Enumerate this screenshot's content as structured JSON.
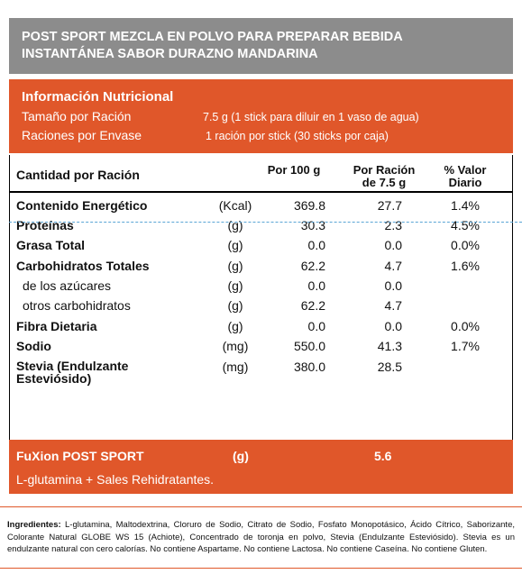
{
  "header": {
    "title_lines": [
      "POST SPORT MEZCLA EN POLVO PARA PREPARAR BEBIDA",
      "INSTANTÁNEA  SABOR DURAZNO MANDARINA"
    ]
  },
  "info": {
    "title": "Información Nutricional",
    "rows": [
      [
        "Tamaño por Ración",
        "7.5 g (1 stick para diluir en 1 vaso de  agua)"
      ],
      [
        "Raciones por Envase",
        "1 ración por stick (30 sticks por caja)"
      ]
    ]
  },
  "table": {
    "columns": {
      "label": "Cantidad por Ración",
      "per100": "Por 100 g",
      "perServing": "Por Ración de 7.5 g",
      "dailyValue": "% Valor Diario"
    },
    "rows": [
      {
        "name": "Contenido Energético",
        "unit": "(Kcal)",
        "per100": "369.8",
        "perServing": "27.7",
        "dailyValue": "1.4%"
      },
      {
        "name": "Proteínas",
        "unit": "(g)",
        "per100": "30.3",
        "perServing": "2.3",
        "dailyValue": "4.5%"
      },
      {
        "name": "Grasa Total",
        "unit": "(g)",
        "per100": "0.0",
        "perServing": "0.0",
        "dailyValue": "0.0%"
      },
      {
        "name": "Carbohidratos Totales",
        "unit": "(g)",
        "per100": "62.2",
        "perServing": "4.7",
        "dailyValue": "1.6%"
      },
      {
        "name": "de los  azúcares",
        "unit": "(g)",
        "per100": "0.0",
        "perServing": "0.0",
        "sub": true
      },
      {
        "name": "otros carbohidratos",
        "unit": "(g)",
        "per100": "62.2",
        "perServing": "4.7",
        "sub": true
      },
      {
        "name": "Fibra Dietaria",
        "unit": "(g)",
        "per100": "0.0",
        "perServing": "0.0",
        "dailyValue": "0.0%"
      },
      {
        "name": "Sodio",
        "unit": "(mg)",
        "per100": "550.0",
        "perServing": "41.3",
        "dailyValue": "1.7%"
      },
      {
        "name": "Stevia (Endulzante Esteviósido)",
        "unit": "(mg)",
        "per100": "380.0",
        "perServing": "28.5"
      }
    ]
  },
  "footer": {
    "name": "FuXion POST SPORT",
    "unit": "(g)",
    "value": "5.6",
    "note": "L-glutamina + Sales Rehidratantes."
  },
  "ingredients": {
    "label": "Ingredientes:",
    "text": "L-glutamina, Maltodextrina, Cloruro de Sodio, Citrato de Sodio, Fosfato Monopotásico, Ácido Cítrico, Saborizante, Colorante Natural GLOBE WS 15 (Achiote), Concentrado de toronja en polvo, Stevia (Endulzante Esteviósido). Stevia es un endulzante natural con cero calorías.  No contiene Aspartame. No contiene Lactosa. No contiene Caseína.  No contiene Gluten."
  }
}
